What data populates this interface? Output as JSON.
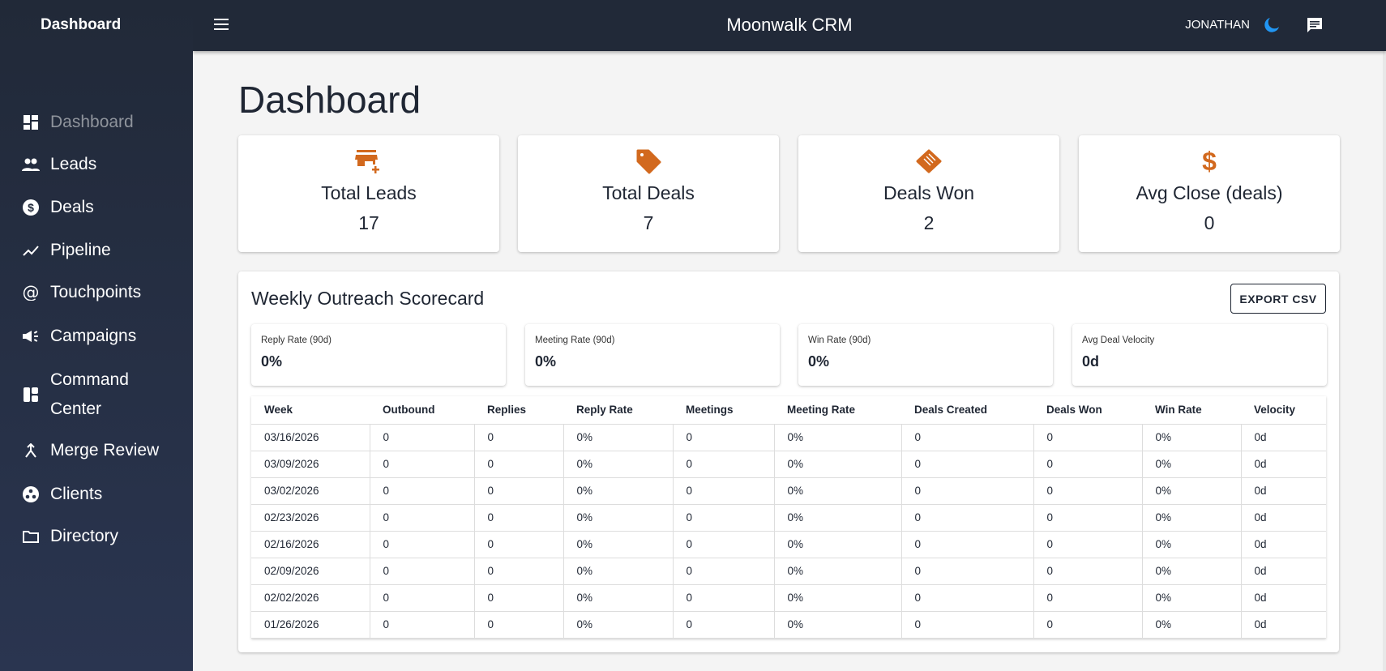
{
  "sidebar": {
    "brand": "Dashboard",
    "items": [
      {
        "label": "Dashboard",
        "icon": "dashboard-icon",
        "active": true
      },
      {
        "label": "Leads",
        "icon": "people-icon"
      },
      {
        "label": "Deals",
        "icon": "dollar-circle-icon"
      },
      {
        "label": "Pipeline",
        "icon": "trending-icon"
      },
      {
        "label": "Touchpoints",
        "icon": "at-icon"
      },
      {
        "label": "Campaigns",
        "icon": "campaign-icon"
      },
      {
        "label": "Command Center",
        "icon": "layout-icon"
      },
      {
        "label": "Merge Review",
        "icon": "merge-icon"
      },
      {
        "label": "Clients",
        "icon": "group-work-icon"
      },
      {
        "label": "Directory",
        "icon": "folder-icon"
      }
    ]
  },
  "header": {
    "title": "Moonwalk CRM",
    "user": "JONATHAN"
  },
  "page": {
    "title": "Dashboard"
  },
  "colors": {
    "accent": "#d2691e",
    "topbar": "#212938",
    "moon": "#2196f3",
    "logo": "#b8a84a"
  },
  "cards": [
    {
      "label": "Total Leads",
      "value": "17",
      "icon": "store-add-icon"
    },
    {
      "label": "Total Deals",
      "value": "7",
      "icon": "tag-icon"
    },
    {
      "label": "Deals Won",
      "value": "2",
      "icon": "handshake-icon"
    },
    {
      "label": "Avg Close (deals)",
      "value": "0",
      "icon": "dollar-icon"
    }
  ],
  "scorecard": {
    "title": "Weekly Outreach Scorecard",
    "export_label": "EXPORT CSV",
    "stats": [
      {
        "label": "Reply Rate (90d)",
        "value": "0%"
      },
      {
        "label": "Meeting Rate (90d)",
        "value": "0%"
      },
      {
        "label": "Win Rate (90d)",
        "value": "0%"
      },
      {
        "label": "Avg Deal Velocity",
        "value": "0d"
      }
    ],
    "columns": [
      "Week",
      "Outbound",
      "Replies",
      "Reply Rate",
      "Meetings",
      "Meeting Rate",
      "Deals Created",
      "Deals Won",
      "Win Rate",
      "Velocity"
    ],
    "rows": [
      [
        "03/16/2026",
        "0",
        "0",
        "0%",
        "0",
        "0%",
        "0",
        "0",
        "0%",
        "0d"
      ],
      [
        "03/09/2026",
        "0",
        "0",
        "0%",
        "0",
        "0%",
        "0",
        "0",
        "0%",
        "0d"
      ],
      [
        "03/02/2026",
        "0",
        "0",
        "0%",
        "0",
        "0%",
        "0",
        "0",
        "0%",
        "0d"
      ],
      [
        "02/23/2026",
        "0",
        "0",
        "0%",
        "0",
        "0%",
        "0",
        "0",
        "0%",
        "0d"
      ],
      [
        "02/16/2026",
        "0",
        "0",
        "0%",
        "0",
        "0%",
        "0",
        "0",
        "0%",
        "0d"
      ],
      [
        "02/09/2026",
        "0",
        "0",
        "0%",
        "0",
        "0%",
        "0",
        "0",
        "0%",
        "0d"
      ],
      [
        "02/02/2026",
        "0",
        "0",
        "0%",
        "0",
        "0%",
        "0",
        "0",
        "0%",
        "0d"
      ],
      [
        "01/26/2026",
        "0",
        "0",
        "0%",
        "0",
        "0%",
        "0",
        "0",
        "0%",
        "0d"
      ]
    ]
  }
}
